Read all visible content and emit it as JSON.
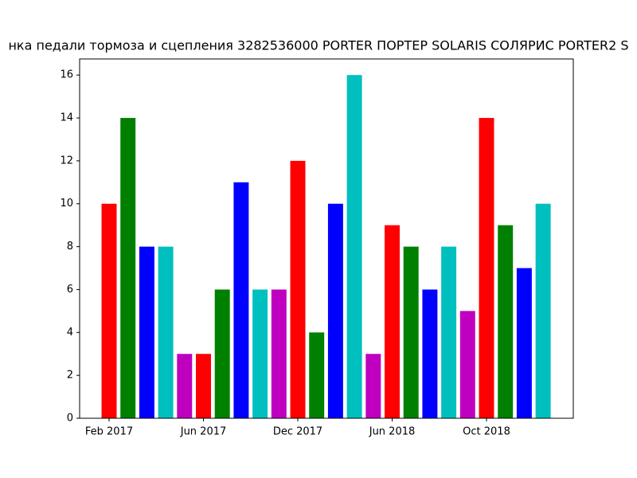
{
  "chart_data": {
    "type": "bar",
    "title": "нка педали тормоза и сцепления 3282536000 PORTER ПОРТЕР SOLARIS СОЛЯРИС PORTER2 S",
    "categories": [
      "Feb 2017",
      null,
      null,
      null,
      null,
      "Jun 2017",
      null,
      null,
      null,
      null,
      "Dec 2017",
      null,
      null,
      null,
      null,
      "Jun 2018",
      null,
      null,
      null,
      null,
      "Oct 2018",
      null,
      null,
      null
    ],
    "values": [
      10,
      14,
      8,
      8,
      3,
      3,
      6,
      11,
      6,
      6,
      12,
      4,
      10,
      16,
      3,
      9,
      8,
      6,
      8,
      5,
      14,
      9,
      7,
      10
    ],
    "colors": [
      "#ff0000",
      "#008000",
      "#0000ff",
      "#00bfbf",
      "#bf00bf",
      "#ff0000",
      "#008000",
      "#0000ff",
      "#00bfbf",
      "#bf00bf",
      "#ff0000",
      "#008000",
      "#0000ff",
      "#00bfbf",
      "#bf00bf",
      "#ff0000",
      "#008000",
      "#0000ff",
      "#00bfbf",
      "#bf00bf",
      "#ff0000",
      "#008000",
      "#0000ff",
      "#00bfbf"
    ],
    "ylim": [
      0,
      16.75
    ],
    "yticks": [
      0,
      2,
      4,
      6,
      8,
      10,
      12,
      14,
      16
    ],
    "grid": false
  }
}
